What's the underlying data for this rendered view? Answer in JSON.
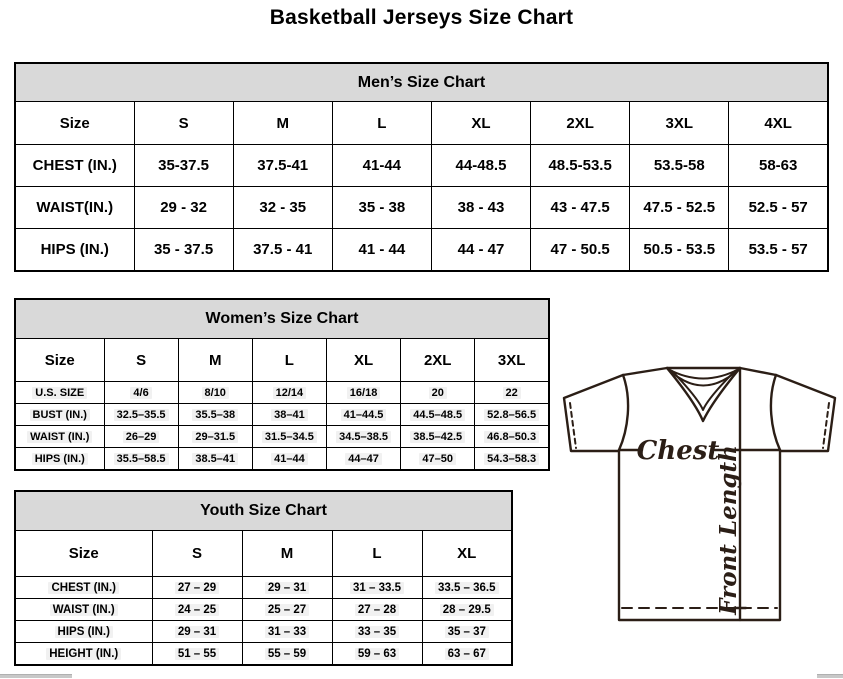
{
  "page": {
    "title": "Basketball Jerseys Size Chart"
  },
  "colors": {
    "header_bg": "#d9d9d9",
    "border": "#000000",
    "cell_highlight": "#f1f1f1",
    "diagram_line": "#2b1e16"
  },
  "tables": [
    {
      "id": "mens",
      "title": "Men’s Size Chart",
      "highlight": false,
      "columns": [
        "Size",
        "S",
        "M",
        "L",
        "XL",
        "2XL",
        "3XL",
        "4XL"
      ],
      "rows": [
        {
          "label": "CHEST (IN.)",
          "values": [
            "35-37.5",
            "37.5-41",
            "41-44",
            "44-48.5",
            "48.5-53.5",
            "53.5-58",
            "58-63"
          ]
        },
        {
          "label": "WAIST(IN.)",
          "values": [
            "29 - 32",
            "32 - 35",
            "35 - 38",
            "38 - 43",
            "43 - 47.5",
            "47.5 - 52.5",
            "52.5 - 57"
          ]
        },
        {
          "label": "HIPS (IN.)",
          "values": [
            "35 - 37.5",
            "37.5 - 41",
            "41 - 44",
            "44 - 47",
            "47 - 50.5",
            "50.5 - 53.5",
            "53.5 - 57"
          ]
        }
      ]
    },
    {
      "id": "womens",
      "title": "Women’s Size Chart",
      "highlight": true,
      "columns": [
        "Size",
        "S",
        "M",
        "L",
        "XL",
        "2XL",
        "3XL"
      ],
      "rows": [
        {
          "label": "U.S. SIZE",
          "values": [
            "4/6",
            "8/10",
            "12/14",
            "16/18",
            "20",
            "22"
          ]
        },
        {
          "label": "BUST (IN.)",
          "values": [
            "32.5–35.5",
            "35.5–38",
            "38–41",
            "41–44.5",
            "44.5–48.5",
            "52.8–56.5"
          ]
        },
        {
          "label": "WAIST (IN.)",
          "values": [
            "26–29",
            "29–31.5",
            "31.5–34.5",
            "34.5–38.5",
            "38.5–42.5",
            "46.8–50.3"
          ]
        },
        {
          "label": "HIPS (IN.)",
          "values": [
            "35.5–58.5",
            "38.5–41",
            "41–44",
            "44–47",
            "47–50",
            "54.3–58.3"
          ]
        }
      ]
    },
    {
      "id": "youth",
      "title": "Youth Size Chart",
      "highlight": true,
      "columns": [
        "Size",
        "S",
        "M",
        "L",
        "XL"
      ],
      "rows": [
        {
          "label": "CHEST (IN.)",
          "values": [
            "27 – 29",
            "29 – 31",
            "31 – 33.5",
            "33.5 – 36.5"
          ]
        },
        {
          "label": "WAIST (IN.)",
          "values": [
            "24 – 25",
            "25 – 27",
            "27 – 28",
            "28 – 29.5"
          ]
        },
        {
          "label": "HIPS (IN.)",
          "values": [
            "29 – 31",
            "31 – 33",
            "33 – 35",
            "35 – 37"
          ]
        },
        {
          "label": "HEIGHT (IN.)",
          "values": [
            "51 – 55",
            "55 – 59",
            "59 – 63",
            "63 – 67"
          ]
        }
      ]
    }
  ],
  "diagram": {
    "chest_label": "Chest",
    "front_length_label": "Front Length"
  }
}
